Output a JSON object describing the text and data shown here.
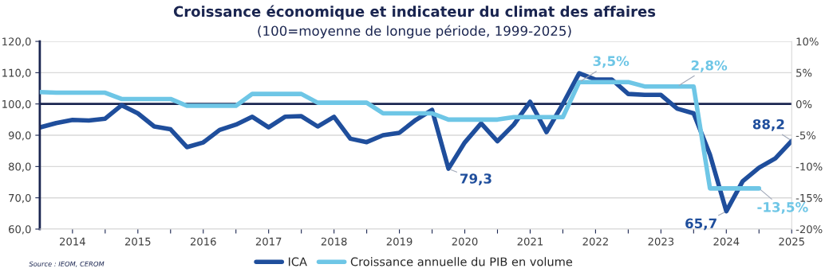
{
  "chart_data": {
    "type": "line",
    "title": "Croissance économique et indicateur du climat des affaires",
    "subtitle": "(100=moyenne de longue période, 1999-2025)",
    "x": [
      2014,
      2014.25,
      2014.5,
      2014.75,
      2015,
      2015.25,
      2015.5,
      2015.75,
      2016,
      2016.25,
      2016.5,
      2016.75,
      2017,
      2017.25,
      2017.5,
      2017.75,
      2018,
      2018.25,
      2018.5,
      2018.75,
      2019,
      2019.25,
      2019.5,
      2019.75,
      2020,
      2020.25,
      2020.5,
      2020.75,
      2021,
      2021.25,
      2021.5,
      2021.75,
      2022,
      2022.25,
      2022.5,
      2022.75,
      2023,
      2023.25,
      2023.5,
      2023.75,
      2024,
      2024.25,
      2024.5,
      2024.75,
      2025,
      2025.25,
      2025.5
    ],
    "series": [
      {
        "name": "ICA",
        "color": "#1f4e9c",
        "values": [
          92.5,
          93.9,
          94.9,
          94.7,
          95.3,
          99.6,
          97.0,
          92.8,
          91.9,
          86.2,
          87.7,
          91.7,
          93.4,
          95.9,
          92.5,
          95.9,
          96.1,
          92.8,
          95.9,
          88.9,
          87.8,
          90.0,
          90.8,
          94.9,
          98.1,
          79.3,
          87.7,
          93.8,
          88.1,
          93.4,
          100.7,
          91.0,
          100.0,
          109.8,
          107.8,
          107.8,
          103.2,
          102.9,
          102.9,
          98.5,
          97.0,
          83.8,
          65.7,
          75.3,
          79.6,
          82.6,
          88.2
        ],
        "value_labels": [
          null,
          null,
          null,
          null,
          null,
          null,
          null,
          null,
          null,
          null,
          null,
          null,
          null,
          null,
          null,
          null,
          null,
          null,
          null,
          null,
          null,
          null,
          null,
          null,
          null,
          "79,3",
          null,
          null,
          null,
          null,
          null,
          null,
          null,
          null,
          null,
          null,
          null,
          null,
          null,
          null,
          null,
          null,
          "65,7",
          null,
          null,
          null,
          "88,2"
        ]
      },
      {
        "name": "Croissance annuelle du PIB en volume",
        "color": "#6ec6e6",
        "axis": "y2",
        "values": [
          1.9,
          1.8,
          1.8,
          1.8,
          1.8,
          0.8,
          0.8,
          0.8,
          0.8,
          -0.3,
          -0.3,
          -0.3,
          -0.3,
          1.6,
          1.6,
          1.6,
          1.6,
          0.2,
          0.2,
          0.2,
          0.2,
          -1.5,
          -1.5,
          -1.5,
          -1.5,
          -2.5,
          -2.5,
          -2.5,
          -2.5,
          -2.1,
          -2.1,
          -2.1,
          -2.1,
          3.5,
          3.5,
          3.5,
          3.5,
          2.8,
          2.8,
          2.8,
          2.8,
          -13.5,
          -13.5,
          -13.5,
          -13.5,
          null,
          null
        ],
        "value_labels": [
          null,
          null,
          null,
          null,
          null,
          null,
          null,
          null,
          null,
          null,
          null,
          null,
          null,
          null,
          null,
          null,
          null,
          null,
          null,
          null,
          null,
          null,
          null,
          null,
          null,
          null,
          null,
          null,
          null,
          null,
          null,
          null,
          null,
          "3,5%",
          null,
          null,
          null,
          null,
          null,
          "2,8%",
          null,
          null,
          null,
          null,
          "-13,5%",
          null,
          null
        ]
      }
    ],
    "xlim": [
      2014,
      2025.5
    ],
    "xticks": [
      {
        "value": 2014.5,
        "label": "2014"
      },
      {
        "value": 2015,
        "label": null
      },
      {
        "value": 2015.5,
        "label": "2015"
      },
      {
        "value": 2016,
        "label": null
      },
      {
        "value": 2016.5,
        "label": "2016"
      },
      {
        "value": 2017,
        "label": null
      },
      {
        "value": 2017.5,
        "label": "2017"
      },
      {
        "value": 2018,
        "label": null
      },
      {
        "value": 2018.5,
        "label": "2018"
      },
      {
        "value": 2019,
        "label": null
      },
      {
        "value": 2019.5,
        "label": "2019"
      },
      {
        "value": 2020,
        "label": null
      },
      {
        "value": 2020.5,
        "label": "2020"
      },
      {
        "value": 2021,
        "label": null
      },
      {
        "value": 2021.5,
        "label": "2021"
      },
      {
        "value": 2022,
        "label": null
      },
      {
        "value": 2022.5,
        "label": "2022"
      },
      {
        "value": 2023,
        "label": null
      },
      {
        "value": 2023.5,
        "label": "2023"
      },
      {
        "value": 2024,
        "label": null
      },
      {
        "value": 2024.5,
        "label": "2024"
      },
      {
        "value": 2025,
        "label": null
      },
      {
        "value": 2025.5,
        "label": "2025"
      }
    ],
    "ylim": [
      60,
      120
    ],
    "yticks": [
      {
        "value": 60,
        "label": "60,0"
      },
      {
        "value": 70,
        "label": "70,0"
      },
      {
        "value": 80,
        "label": "80,0"
      },
      {
        "value": 90,
        "label": "90,0"
      },
      {
        "value": 100,
        "label": "100,0"
      },
      {
        "value": 110,
        "label": "110,0"
      },
      {
        "value": 120,
        "label": "120,0"
      }
    ],
    "y2lim": [
      -20,
      10
    ],
    "y2ticks": [
      {
        "value": -20,
        "label": "-20%"
      },
      {
        "value": -15,
        "label": "-15%"
      },
      {
        "value": -10,
        "label": "-10%"
      },
      {
        "value": -5,
        "label": "-5%"
      },
      {
        "value": 0,
        "label": "0%"
      },
      {
        "value": 5,
        "label": "5%"
      },
      {
        "value": 10,
        "label": "10%"
      }
    ],
    "ref_lines": [
      {
        "axis": "y",
        "value": 100,
        "color": "#1a2550"
      }
    ],
    "grid": "y",
    "legend": "bottom",
    "marker": "none",
    "line_style": "solid",
    "annotations": [
      "Source : IEOM, CEROM"
    ]
  }
}
